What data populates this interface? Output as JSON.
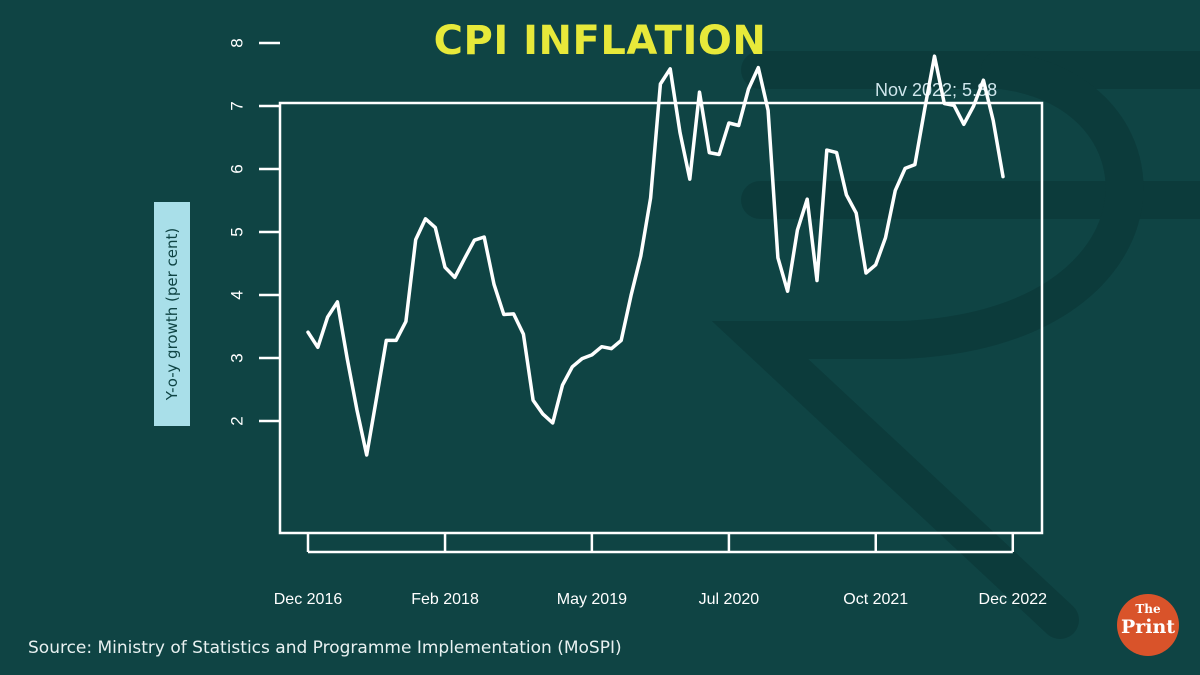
{
  "header": {
    "title": "CPI INFLATION"
  },
  "annotation": "Nov 2022; 5.88",
  "source": "Source: Ministry of Statistics and Programme Implementation (MoSPI)",
  "logo": {
    "line1": "The",
    "line2": "Print"
  },
  "colors": {
    "background": "#0f4444",
    "title": "#e7e93a",
    "line": "#ffffff",
    "ylabel_bg": "#a9dfe9",
    "logo": "#d9532a"
  },
  "chart_data": {
    "type": "line",
    "title": "CPI INFLATION",
    "xlabel": "",
    "ylabel": "Y-o-y growth (per cent)",
    "ylim": [
      1.4,
      8.4
    ],
    "yticks": [
      2,
      3,
      4,
      5,
      6,
      7,
      8
    ],
    "xticks": [
      {
        "index": 0,
        "label": "Dec 2016"
      },
      {
        "index": 14,
        "label": "Feb 2018"
      },
      {
        "index": 29,
        "label": "May 2019"
      },
      {
        "index": 43,
        "label": "Jul 2020"
      },
      {
        "index": 58,
        "label": "Oct 2021"
      },
      {
        "index": 72,
        "label": "Dec 2022"
      }
    ],
    "x_start": "Dec 2016",
    "x_end": "Dec 2022",
    "series": [
      {
        "name": "CPI inflation",
        "values": [
          3.41,
          3.17,
          3.65,
          3.89,
          2.99,
          2.18,
          1.46,
          2.36,
          3.28,
          3.28,
          3.58,
          4.88,
          5.21,
          5.07,
          4.44,
          4.28,
          4.58,
          4.87,
          4.92,
          4.17,
          3.69,
          3.7,
          3.38,
          2.33,
          2.11,
          1.97,
          2.57,
          2.86,
          2.99,
          3.05,
          3.18,
          3.15,
          3.28,
          3.99,
          4.62,
          5.54,
          7.35,
          7.59,
          6.58,
          5.84,
          7.22,
          6.26,
          6.23,
          6.73,
          6.69,
          7.27,
          7.61,
          6.93,
          4.59,
          4.06,
          5.03,
          5.52,
          4.23,
          6.3,
          6.26,
          5.59,
          5.3,
          4.35,
          4.48,
          4.91,
          5.66,
          6.01,
          6.07,
          6.95,
          7.79,
          7.04,
          7.01,
          6.71,
          7.0,
          7.41,
          6.77,
          5.88
        ]
      }
    ]
  }
}
